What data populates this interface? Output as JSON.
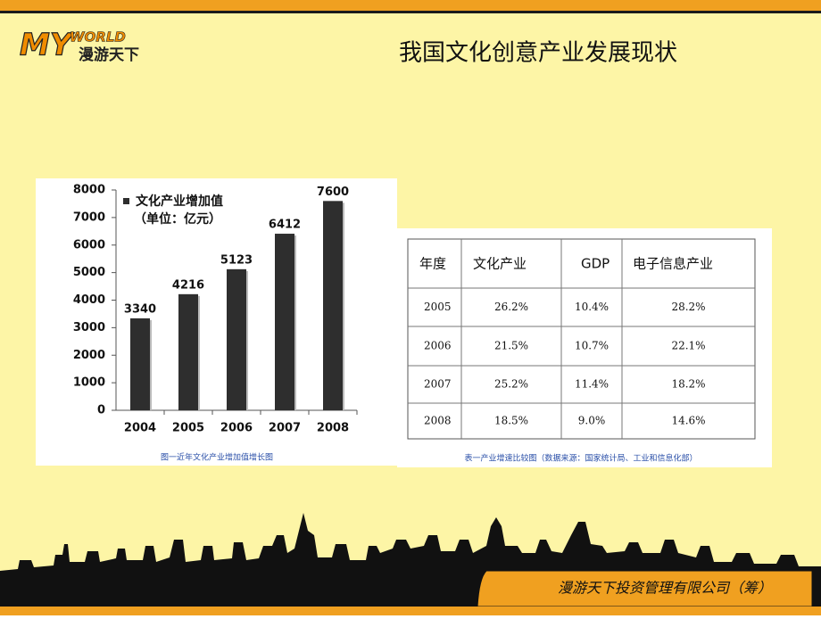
{
  "header": {
    "logo_top": "MY",
    "logo_word": "WORLD",
    "logo_sub": "漫游天下",
    "title": "我国文化创意产业发展现状"
  },
  "chart_data": {
    "type": "bar",
    "legend": "文化产业增加值",
    "unit": "（单位：亿元）",
    "categories": [
      "2004",
      "2005",
      "2006",
      "2007",
      "2008"
    ],
    "values": [
      3340,
      4216,
      5123,
      6412,
      7600
    ],
    "color": "#2e2e2e",
    "ylim": [
      0,
      8000
    ],
    "yticks": [
      0,
      1000,
      2000,
      3000,
      4000,
      5000,
      6000,
      7000,
      8000
    ],
    "caption": "图一近年文化产业增加值增长图"
  },
  "table": {
    "header": [
      "年度",
      "文化产业",
      "GDP",
      "电子信息产业"
    ],
    "rows": [
      [
        "2005",
        "26.2%",
        "10.4%",
        "28.2%"
      ],
      [
        "2006",
        "21.5%",
        "10.7%",
        "22.1%"
      ],
      [
        "2007",
        "25.2%",
        "11.4%",
        "18.2%"
      ],
      [
        "2008",
        "18.5%",
        "9.0%",
        "14.6%"
      ]
    ],
    "caption": "表一产业增速比较图（数据来源：国家统计局、工业和信息化部）"
  },
  "footer": {
    "company": "漫游天下投资管理有限公司（筹）"
  }
}
